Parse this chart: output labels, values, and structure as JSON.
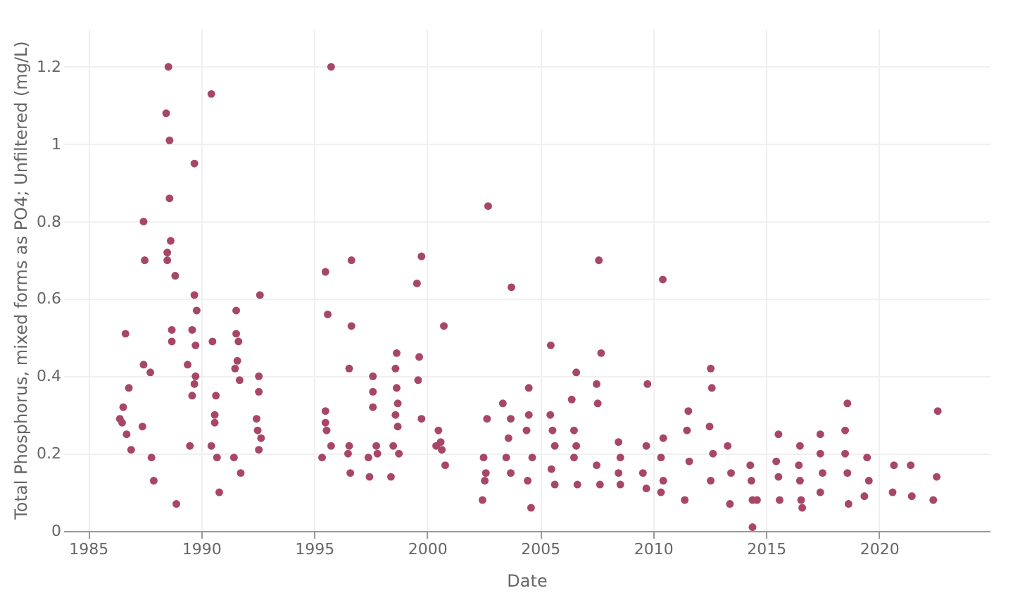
{
  "chart_data": {
    "type": "scatter",
    "xlabel": "Date",
    "ylabel": "Total Phosphorus, mixed forms as PO4; Unfiltered (mg/L)",
    "xlim": [
      1983.9,
      2024.9
    ],
    "xticks": [
      1985,
      1990,
      1995,
      2000,
      2005,
      2010,
      2015,
      2020
    ],
    "ylim": [
      0,
      1.3
    ],
    "yticks": [
      0,
      0.2,
      0.4,
      0.6,
      0.8,
      1,
      1.2
    ],
    "grid": true,
    "marker": "circle",
    "series": [
      {
        "color": "#a8466a",
        "x": [
          1986.65,
          1986.8,
          1986.55,
          1986.4,
          1986.5,
          1986.7,
          1986.9,
          1987.45,
          1987.45,
          1987.5,
          1987.75,
          1987.4,
          1987.8,
          1987.9,
          1988.55,
          1988.45,
          1988.6,
          1988.6,
          1988.65,
          1988.5,
          1988.5,
          1988.85,
          1988.7,
          1988.7,
          1988.9,
          1990.45,
          1989.7,
          1989.7,
          1989.8,
          1989.6,
          1989.75,
          1989.4,
          1989.75,
          1989.7,
          1989.6,
          1989.5,
          1990.5,
          1990.65,
          1990.6,
          1990.6,
          1990.45,
          1990.7,
          1990.8,
          1991.45,
          1991.55,
          1991.55,
          1991.65,
          1991.6,
          1991.5,
          1991.7,
          1991.75,
          1992.6,
          1992.55,
          1992.55,
          1992.45,
          1992.5,
          1992.65,
          1992.55,
          1995.5,
          1995.75,
          1995.6,
          1995.5,
          1995.5,
          1995.55,
          1995.35,
          1995.75,
          1996.65,
          1996.65,
          1996.55,
          1996.55,
          1996.5,
          1996.6,
          1997.4,
          1997.45,
          1997.6,
          1997.6,
          1997.6,
          1997.75,
          1997.8,
          1998.4,
          1998.65,
          1998.6,
          1998.65,
          1998.7,
          1998.6,
          1998.7,
          1998.5,
          1998.75,
          1999.75,
          1999.55,
          1999.65,
          1999.6,
          1999.75,
          2000.4,
          2000.74,
          2000.5,
          2000.6,
          2000.65,
          2000.8,
          2002.7,
          2002.65,
          2002.5,
          2002.6,
          2002.55,
          2002.45,
          2003.35,
          2003.7,
          2003.6,
          2003.5,
          2003.7,
          2003.73,
          2004.5,
          2004.5,
          2004.4,
          2004.65,
          2004.45,
          2004.6,
          2005.47,
          2005.45,
          2005.55,
          2005.65,
          2005.5,
          2005.65,
          2006.4,
          2006.6,
          2006.5,
          2006.6,
          2006.5,
          2006.65,
          2007.6,
          2007.7,
          2007.5,
          2007.55,
          2007.5,
          2007.65,
          2008.47,
          2008.55,
          2008.47,
          2008.55,
          2010.43,
          2009.75,
          2009.7,
          2009.55,
          2009.7,
          2010.45,
          2010.35,
          2010.45,
          2010.35,
          2011.56,
          2011.5,
          2011.6,
          2011.4,
          2012.55,
          2012.6,
          2012.5,
          2012.65,
          2012.55,
          2013.3,
          2013.45,
          2013.4,
          2014.3,
          2014.4,
          2014.35,
          2014.4,
          2014.6,
          2015.55,
          2015.45,
          2015.55,
          2015.6,
          2016.5,
          2016.45,
          2016.5,
          2016.55,
          2016.6,
          2017.4,
          2017.4,
          2017.5,
          2017.4,
          2018.6,
          2018.5,
          2018.5,
          2018.6,
          2018.65,
          2019.47,
          2019.55,
          2019.35,
          2020.66,
          2020.6,
          2021.4,
          2021.45,
          2022.6,
          2022.55,
          2022.4
        ],
        "values": [
          0.51,
          0.37,
          0.32,
          0.29,
          0.28,
          0.25,
          0.21,
          0.43,
          0.8,
          0.7,
          0.41,
          0.27,
          0.19,
          0.13,
          1.2,
          1.08,
          1.01,
          0.86,
          0.75,
          0.72,
          0.7,
          0.66,
          0.52,
          0.49,
          0.07,
          1.13,
          0.95,
          0.61,
          0.57,
          0.52,
          0.48,
          0.43,
          0.4,
          0.38,
          0.35,
          0.22,
          0.49,
          0.35,
          0.3,
          0.28,
          0.22,
          0.19,
          0.1,
          0.19,
          0.57,
          0.51,
          0.49,
          0.44,
          0.42,
          0.39,
          0.15,
          0.61,
          0.4,
          0.36,
          0.29,
          0.26,
          0.24,
          0.21,
          0.67,
          1.2,
          0.56,
          0.31,
          0.28,
          0.26,
          0.19,
          0.22,
          0.7,
          0.53,
          0.42,
          0.22,
          0.2,
          0.15,
          0.19,
          0.14,
          0.4,
          0.36,
          0.32,
          0.22,
          0.2,
          0.14,
          0.46,
          0.42,
          0.37,
          0.33,
          0.3,
          0.27,
          0.22,
          0.2,
          0.71,
          0.64,
          0.45,
          0.39,
          0.29,
          0.22,
          0.53,
          0.26,
          0.23,
          0.21,
          0.17,
          0.84,
          0.29,
          0.19,
          0.15,
          0.13,
          0.08,
          0.33,
          0.29,
          0.24,
          0.19,
          0.15,
          0.63,
          0.37,
          0.3,
          0.26,
          0.19,
          0.13,
          0.06,
          0.48,
          0.3,
          0.26,
          0.22,
          0.16,
          0.12,
          0.34,
          0.41,
          0.26,
          0.22,
          0.19,
          0.12,
          0.7,
          0.46,
          0.38,
          0.33,
          0.17,
          0.12,
          0.23,
          0.19,
          0.15,
          0.12,
          0.65,
          0.38,
          0.22,
          0.15,
          0.11,
          0.24,
          0.19,
          0.13,
          0.1,
          0.31,
          0.26,
          0.18,
          0.08,
          0.42,
          0.37,
          0.27,
          0.2,
          0.13,
          0.22,
          0.15,
          0.07,
          0.17,
          0.01,
          0.13,
          0.08,
          0.08,
          0.25,
          0.18,
          0.14,
          0.08,
          0.22,
          0.17,
          0.13,
          0.08,
          0.06,
          0.25,
          0.2,
          0.15,
          0.1,
          0.33,
          0.26,
          0.2,
          0.15,
          0.07,
          0.19,
          0.13,
          0.09,
          0.17,
          0.1,
          0.17,
          0.09,
          0.31,
          0.14,
          0.08
        ]
      }
    ]
  }
}
